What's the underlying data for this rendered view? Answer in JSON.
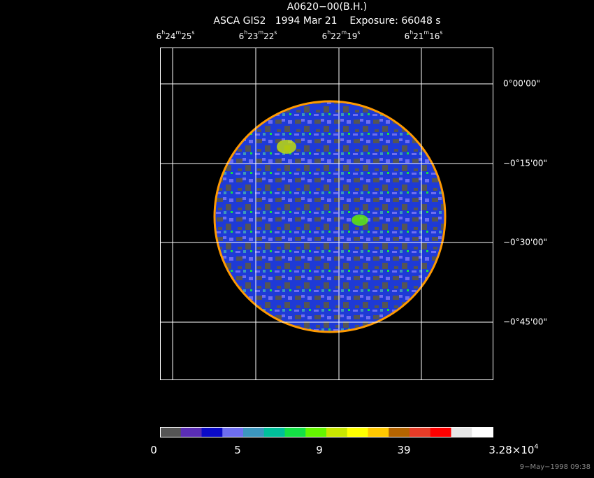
{
  "header": {
    "title": "A0620−00(B.H.)",
    "subtitle": "ASCA GIS2   1994 Mar 21    Exposure: 66048 s"
  },
  "ra_labels": [
    [
      "6",
      "h",
      "24",
      "m",
      "25",
      "s"
    ],
    [
      "6",
      "h",
      "23",
      "m",
      "22",
      "s"
    ],
    [
      "6",
      "h",
      "22",
      "m",
      "19",
      "s"
    ],
    [
      "6",
      "h",
      "21",
      "m",
      "16",
      "s"
    ]
  ],
  "dec_labels": [
    "0°00'00\"",
    "−0°15'00\"",
    "−0°30'00\"",
    "−0°45'00\""
  ],
  "colorbar": {
    "colors": [
      "#555555",
      "#5a2db4",
      "#0a0ac8",
      "#6e6ef0",
      "#3c96be",
      "#00bf9a",
      "#14e046",
      "#64f500",
      "#c8e600",
      "#ffff00",
      "#ffc800",
      "#b46400",
      "#e63c28",
      "#ff0000",
      "#e6e6e6",
      "#ffffff"
    ],
    "labels": [
      [
        "0"
      ],
      [
        "5"
      ],
      [
        "9"
      ],
      [
        "39"
      ],
      [
        "3.28×10",
        "4"
      ]
    ]
  },
  "footer": "9−May−1998 09:38"
}
